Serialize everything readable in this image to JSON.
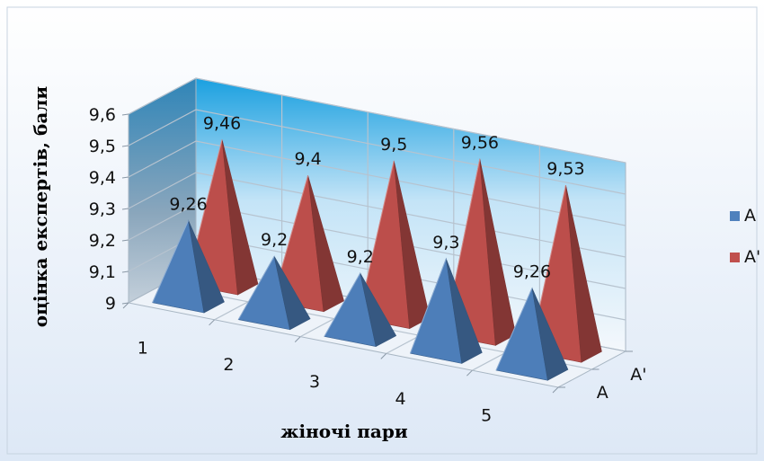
{
  "chart_data": {
    "type": "bar",
    "style": "3d-pyramid",
    "categories": [
      "1",
      "2",
      "3",
      "4",
      "5"
    ],
    "series": [
      {
        "name": "A",
        "values": [
          9.26,
          9.2,
          9.2,
          9.3,
          9.26
        ],
        "labels": [
          "9,26",
          "9,2",
          "9,2",
          "9,3",
          "9,26"
        ],
        "color": "#4f81bd"
      },
      {
        "name": "A'",
        "values": [
          9.46,
          9.4,
          9.5,
          9.56,
          9.53
        ],
        "labels": [
          "9,46",
          "9,4",
          "9,5",
          "9,56",
          "9,53"
        ],
        "color": "#c0504d"
      }
    ],
    "ylim": [
      9,
      9.6
    ],
    "yticks": [
      "9",
      "9,1",
      "9,2",
      "9,3",
      "9,4",
      "9,5",
      "9,6"
    ],
    "depth_labels": [
      "A",
      "A'"
    ],
    "xlabel": "жіночі пари",
    "ylabel": "оцінка експертів, бали",
    "grid": true,
    "legend": "right"
  }
}
